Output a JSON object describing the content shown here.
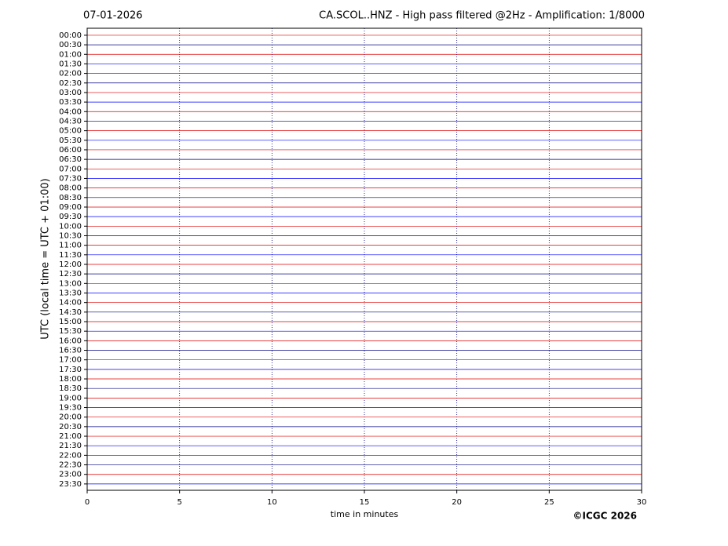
{
  "chart_data": {
    "type": "helicorder",
    "date": "07-01-2026",
    "title": "CA.SCOL..HNZ - High pass filtered @2Hz - Amplification: 1/8000",
    "ylabel": "UTC (local time = UTC + 01:00)",
    "xlabel": "time in minutes",
    "credit": "©ICGC 2026",
    "xlim": [
      0,
      30
    ],
    "xticks": [
      0,
      5,
      10,
      15,
      20,
      25,
      30
    ],
    "ylim": [
      1430,
      -22
    ],
    "yticks": [
      {
        "value": 0,
        "label": "00:00"
      },
      {
        "value": 30,
        "label": "00:30"
      },
      {
        "value": 60,
        "label": "01:00"
      },
      {
        "value": 90,
        "label": "01:30"
      },
      {
        "value": 120,
        "label": "02:00"
      },
      {
        "value": 150,
        "label": "02:30"
      },
      {
        "value": 180,
        "label": "03:00"
      },
      {
        "value": 210,
        "label": "03:30"
      },
      {
        "value": 240,
        "label": "04:00"
      },
      {
        "value": 270,
        "label": "04:30"
      },
      {
        "value": 300,
        "label": "05:00"
      },
      {
        "value": 330,
        "label": "05:30"
      },
      {
        "value": 360,
        "label": "06:00"
      },
      {
        "value": 390,
        "label": "06:30"
      },
      {
        "value": 420,
        "label": "07:00"
      },
      {
        "value": 450,
        "label": "07:30"
      },
      {
        "value": 480,
        "label": "08:00"
      },
      {
        "value": 510,
        "label": "08:30"
      },
      {
        "value": 540,
        "label": "09:00"
      },
      {
        "value": 570,
        "label": "09:30"
      },
      {
        "value": 600,
        "label": "10:00"
      },
      {
        "value": 630,
        "label": "10:30"
      },
      {
        "value": 660,
        "label": "11:00"
      },
      {
        "value": 690,
        "label": "11:30"
      },
      {
        "value": 720,
        "label": "12:00"
      },
      {
        "value": 750,
        "label": "12:30"
      },
      {
        "value": 780,
        "label": "13:00"
      },
      {
        "value": 810,
        "label": "13:30"
      },
      {
        "value": 840,
        "label": "14:00"
      },
      {
        "value": 870,
        "label": "14:30"
      },
      {
        "value": 900,
        "label": "15:00"
      },
      {
        "value": 930,
        "label": "15:30"
      },
      {
        "value": 960,
        "label": "16:00"
      },
      {
        "value": 990,
        "label": "16:30"
      },
      {
        "value": 1020,
        "label": "17:00"
      },
      {
        "value": 1050,
        "label": "17:30"
      },
      {
        "value": 1080,
        "label": "18:00"
      },
      {
        "value": 1110,
        "label": "18:30"
      },
      {
        "value": 1140,
        "label": "19:00"
      },
      {
        "value": 1170,
        "label": "19:30"
      },
      {
        "value": 1200,
        "label": "20:00"
      },
      {
        "value": 1230,
        "label": "20:30"
      },
      {
        "value": 1260,
        "label": "21:00"
      },
      {
        "value": 1290,
        "label": "21:30"
      },
      {
        "value": 1320,
        "label": "22:00"
      },
      {
        "value": 1350,
        "label": "22:30"
      },
      {
        "value": 1380,
        "label": "23:00"
      },
      {
        "value": 1410,
        "label": "23:30"
      }
    ],
    "colors": [
      "#e00000",
      "#000080",
      "#e00000",
      "#0000ff"
    ],
    "grid": true
  }
}
